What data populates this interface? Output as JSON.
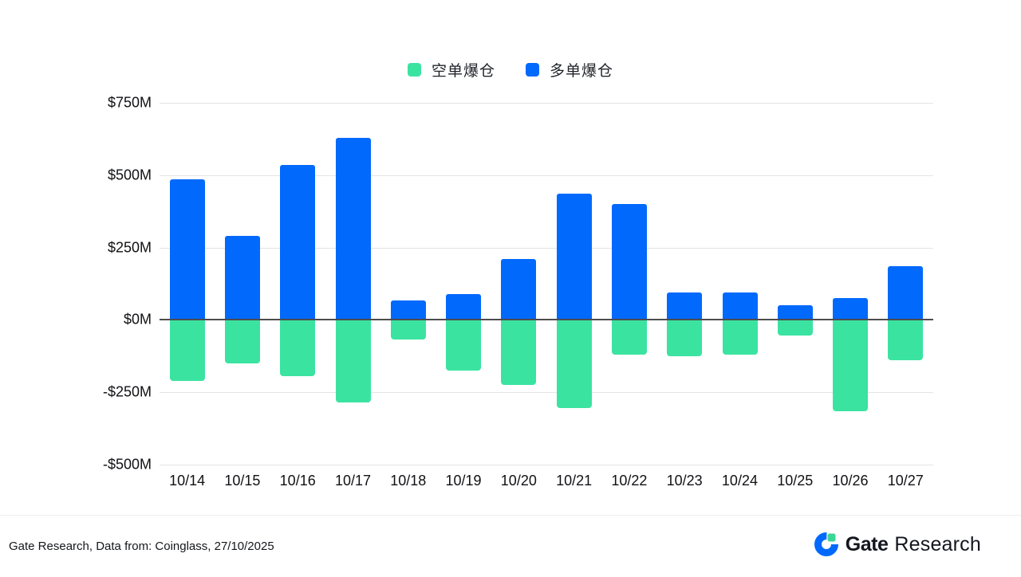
{
  "legend": {
    "items": [
      {
        "label": "空单爆仓",
        "color": "#3BE3A1",
        "icon": "green-square-swatch"
      },
      {
        "label": "多单爆仓",
        "color": "#0169FC",
        "icon": "blue-square-swatch"
      }
    ]
  },
  "chart_data": {
    "type": "bar",
    "subtype": "diverging-stacked",
    "unit": "USD millions",
    "categories": [
      "10/14",
      "10/15",
      "10/16",
      "10/17",
      "10/18",
      "10/19",
      "10/20",
      "10/21",
      "10/22",
      "10/23",
      "10/24",
      "10/25",
      "10/26",
      "10/27"
    ],
    "series": [
      {
        "name": "多单爆仓",
        "color": "#0169FC",
        "values": [
          485,
          290,
          535,
          630,
          68,
          90,
          210,
          435,
          400,
          95,
          95,
          50,
          75,
          185
        ]
      },
      {
        "name": "空单爆仓",
        "color": "#3BE3A1",
        "values": [
          -210,
          -150,
          -195,
          -285,
          -68,
          -175,
          -225,
          -305,
          -120,
          -125,
          -120,
          -55,
          -315,
          -140
        ]
      }
    ],
    "title": "",
    "xlabel": "",
    "ylabel": "",
    "ylim": [
      -500,
      750
    ],
    "yticks": [
      {
        "value": 750,
        "label": "$750M"
      },
      {
        "value": 500,
        "label": "$500M"
      },
      {
        "value": 250,
        "label": "$250M"
      },
      {
        "value": 0,
        "label": "$0M"
      },
      {
        "value": -250,
        "label": "-$250M"
      },
      {
        "value": -500,
        "label": "-$500M"
      }
    ],
    "grid": true,
    "legend_position": "top-center"
  },
  "colors": {
    "long_bar": "#0169FC",
    "short_bar": "#3BE3A1",
    "gridline": "#E4E4E4",
    "zero_line": "#4D4D4D",
    "divider": "#EFEFEF",
    "logo_blue": "#0169FC",
    "logo_green": "#3BD795"
  },
  "footer": {
    "source": "Gate Research, Data from: Coinglass, 27/10/2025",
    "brand_bold": "Gate",
    "brand_regular": "Research"
  }
}
